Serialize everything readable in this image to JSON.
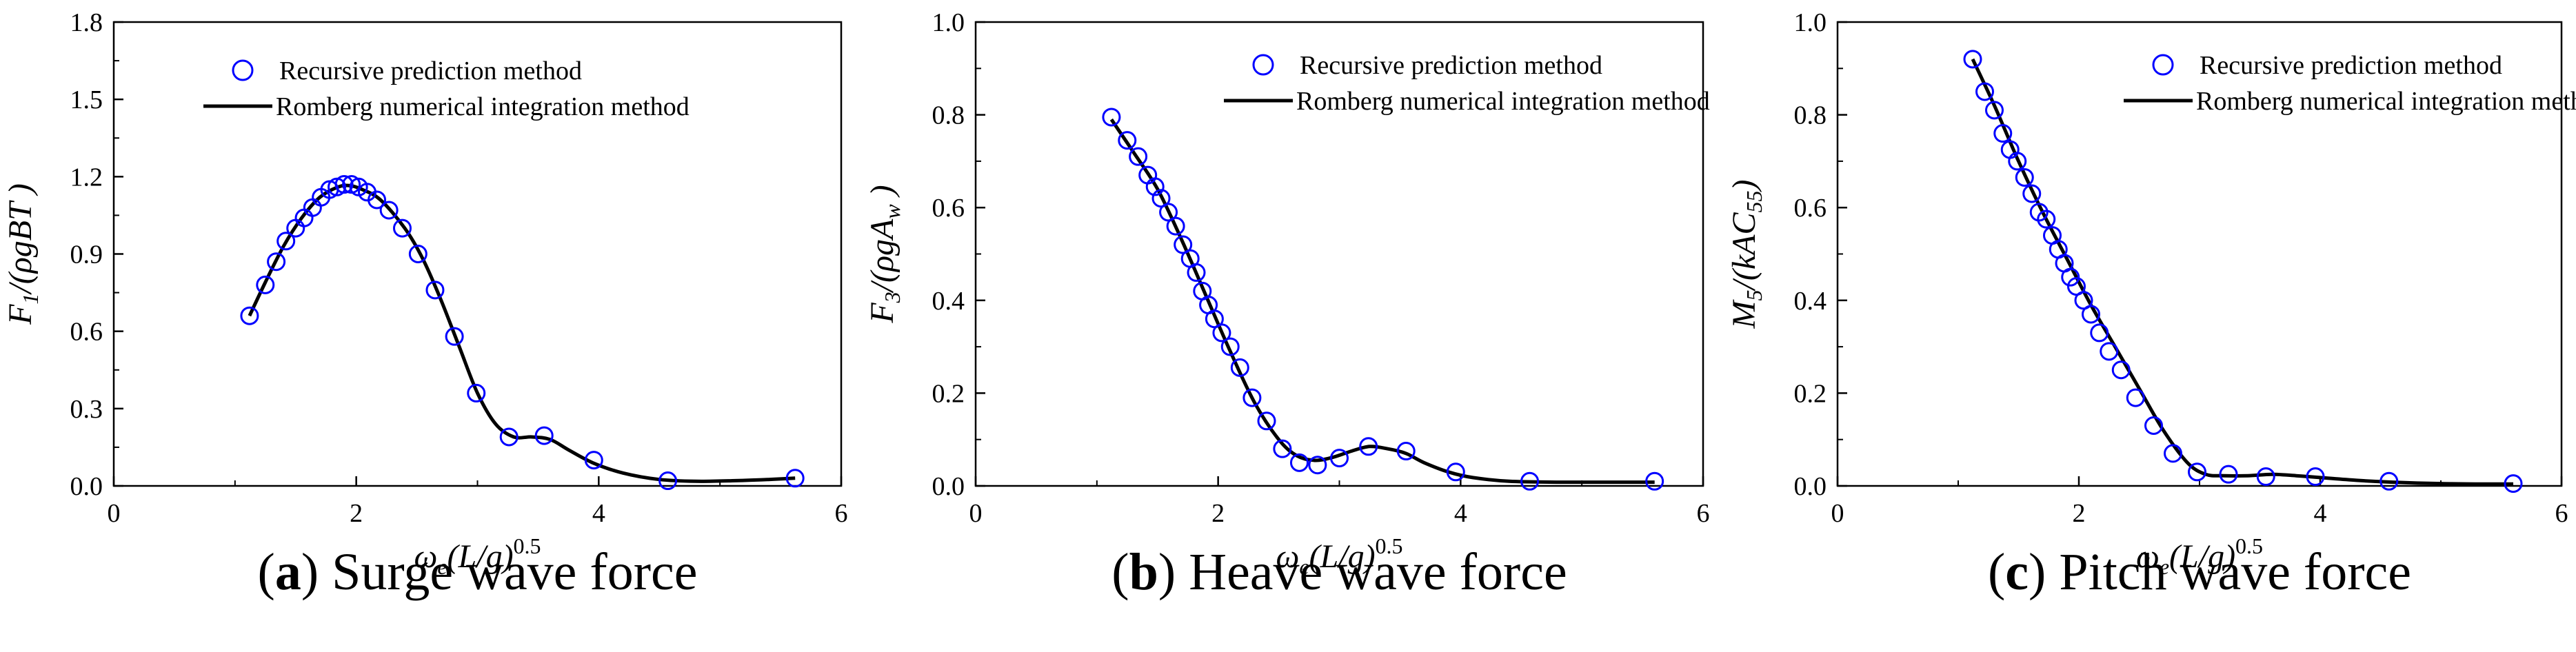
{
  "chart_data": [
    {
      "type": "scatter+line",
      "id": "a",
      "caption_letter": "a",
      "caption_title": "Surge wave force",
      "ylabel": {
        "base": "F",
        "sub": "1",
        "rest": "/(ρgBT )"
      },
      "xlabel": {
        "omega": "ω",
        "sub": "e",
        "rest": "(L/g)",
        "sup": "0.5"
      },
      "xlim": [
        0,
        6
      ],
      "ylim": [
        0,
        1.8
      ],
      "xticks": [
        0,
        2,
        4,
        6
      ],
      "yticks": [
        0.0,
        0.3,
        0.6,
        0.9,
        1.2,
        1.5,
        1.8
      ],
      "yticks_text": [
        "0.0",
        "0.3",
        "0.6",
        "0.9",
        "1.2",
        "1.5",
        "1.8"
      ],
      "legend": {
        "scatter": "Recursive prediction method",
        "line": "Romberg numerical integration method"
      },
      "colors": {
        "scatter": "#0000ff",
        "line": "#000000"
      },
      "scatter": {
        "name": "Recursive prediction method",
        "x": [
          1.12,
          1.25,
          1.34,
          1.42,
          1.5,
          1.57,
          1.64,
          1.71,
          1.78,
          1.84,
          1.9,
          1.96,
          2.02,
          2.09,
          2.17,
          2.27,
          2.38,
          2.51,
          2.65,
          2.81,
          2.99,
          3.26,
          3.55,
          3.96,
          4.57,
          5.62
        ],
        "y": [
          0.66,
          0.78,
          0.87,
          0.95,
          1.0,
          1.04,
          1.08,
          1.12,
          1.15,
          1.16,
          1.17,
          1.17,
          1.16,
          1.14,
          1.11,
          1.07,
          1.0,
          0.9,
          0.76,
          0.58,
          0.36,
          0.19,
          0.195,
          0.1,
          0.02,
          0.03
        ]
      },
      "line": {
        "name": "Romberg numerical integration method",
        "x": [
          1.12,
          1.25,
          1.4,
          1.55,
          1.7,
          1.85,
          1.95,
          2.05,
          2.2,
          2.4,
          2.55,
          2.7,
          2.85,
          3.0,
          3.15,
          3.3,
          3.45,
          3.6,
          3.75,
          3.95,
          4.2,
          4.5,
          4.8,
          5.1,
          5.4,
          5.62
        ],
        "y": [
          0.66,
          0.79,
          0.93,
          1.04,
          1.12,
          1.16,
          1.165,
          1.15,
          1.11,
          1.0,
          0.88,
          0.72,
          0.54,
          0.36,
          0.24,
          0.19,
          0.19,
          0.18,
          0.14,
          0.09,
          0.05,
          0.025,
          0.018,
          0.02,
          0.025,
          0.03
        ]
      }
    },
    {
      "type": "scatter+line",
      "id": "b",
      "caption_letter": "b",
      "caption_title": "Heave wave force",
      "ylabel": {
        "base": "F",
        "sub": "3",
        "rest": "/(ρgA",
        "sub2": "w",
        "rest2": " )"
      },
      "xlabel": {
        "omega": "ω",
        "sub": "e",
        "rest": "(L/g)",
        "sup": "0.5"
      },
      "xlim": [
        0,
        6
      ],
      "ylim": [
        0,
        1.0
      ],
      "xticks": [
        0,
        2,
        4,
        6
      ],
      "yticks": [
        0.0,
        0.2,
        0.4,
        0.6,
        0.8,
        1.0
      ],
      "yticks_text": [
        "0.0",
        "0.2",
        "0.4",
        "0.6",
        "0.8",
        "1.0"
      ],
      "legend": {
        "scatter": "Recursive prediction method",
        "line": "Romberg numerical integration method"
      },
      "colors": {
        "scatter": "#0000ff",
        "line": "#000000"
      },
      "scatter": {
        "name": "Recursive prediction method",
        "x": [
          1.12,
          1.25,
          1.34,
          1.42,
          1.48,
          1.53,
          1.59,
          1.65,
          1.71,
          1.77,
          1.82,
          1.87,
          1.92,
          1.97,
          2.03,
          2.1,
          2.18,
          2.28,
          2.4,
          2.53,
          2.67,
          2.82,
          3.0,
          3.24,
          3.55,
          3.96,
          4.57,
          5.6
        ],
        "y": [
          0.795,
          0.745,
          0.71,
          0.67,
          0.645,
          0.62,
          0.59,
          0.56,
          0.52,
          0.49,
          0.46,
          0.42,
          0.39,
          0.36,
          0.33,
          0.3,
          0.255,
          0.19,
          0.14,
          0.08,
          0.05,
          0.045,
          0.06,
          0.085,
          0.075,
          0.03,
          0.01,
          0.01
        ]
      },
      "line": {
        "name": "Romberg numerical integration method",
        "x": [
          1.12,
          1.3,
          1.5,
          1.7,
          1.9,
          2.1,
          2.3,
          2.5,
          2.65,
          2.8,
          2.95,
          3.1,
          3.25,
          3.4,
          3.55,
          3.7,
          3.9,
          4.1,
          4.4,
          4.8,
          5.2,
          5.6
        ],
        "y": [
          0.79,
          0.72,
          0.64,
          0.53,
          0.41,
          0.29,
          0.18,
          0.1,
          0.065,
          0.055,
          0.062,
          0.075,
          0.085,
          0.08,
          0.07,
          0.05,
          0.03,
          0.018,
          0.01,
          0.008,
          0.008,
          0.008
        ]
      }
    },
    {
      "type": "scatter+line",
      "id": "c",
      "caption_letter": "c",
      "caption_title": "Pitch wave force",
      "ylabel": {
        "base": "M",
        "sub": "5",
        "rest": "/(kAC",
        "sub2": "55",
        "rest2": ")"
      },
      "xlabel": {
        "omega": "ω",
        "sub": "e",
        "rest": "(L/g)",
        "sup": "0.5"
      },
      "xlim": [
        0,
        6
      ],
      "ylim": [
        0,
        1.0
      ],
      "xticks": [
        0,
        2,
        4,
        6
      ],
      "yticks": [
        0.0,
        0.2,
        0.4,
        0.6,
        0.8,
        1.0
      ],
      "yticks_text": [
        "0.0",
        "0.2",
        "0.4",
        "0.6",
        "0.8",
        "1.0"
      ],
      "legend": {
        "scatter": "Recursive prediction method",
        "line": "Romberg numerical integration method"
      },
      "colors": {
        "scatter": "#0000ff",
        "line": "#000000"
      },
      "scatter": {
        "name": "Recursive prediction method",
        "x": [
          1.12,
          1.22,
          1.3,
          1.37,
          1.43,
          1.49,
          1.55,
          1.61,
          1.67,
          1.73,
          1.78,
          1.83,
          1.88,
          1.93,
          1.98,
          2.04,
          2.1,
          2.17,
          2.25,
          2.35,
          2.47,
          2.62,
          2.78,
          2.98,
          3.24,
          3.55,
          3.96,
          4.57,
          5.6
        ],
        "y": [
          0.92,
          0.85,
          0.81,
          0.76,
          0.725,
          0.7,
          0.665,
          0.63,
          0.59,
          0.575,
          0.54,
          0.51,
          0.48,
          0.45,
          0.43,
          0.4,
          0.37,
          0.33,
          0.29,
          0.25,
          0.19,
          0.13,
          0.07,
          0.03,
          0.025,
          0.02,
          0.02,
          0.01,
          0.005
        ]
      },
      "line": {
        "name": "Romberg numerical integration method",
        "x": [
          1.12,
          1.3,
          1.5,
          1.7,
          1.9,
          2.1,
          2.3,
          2.5,
          2.7,
          2.9,
          3.05,
          3.2,
          3.4,
          3.6,
          3.8,
          4.0,
          4.3,
          4.6,
          5.0,
          5.4,
          5.6
        ],
        "y": [
          0.92,
          0.82,
          0.7,
          0.59,
          0.49,
          0.39,
          0.3,
          0.21,
          0.12,
          0.05,
          0.025,
          0.022,
          0.022,
          0.025,
          0.022,
          0.018,
          0.012,
          0.008,
          0.005,
          0.004,
          0.004
        ]
      }
    }
  ]
}
